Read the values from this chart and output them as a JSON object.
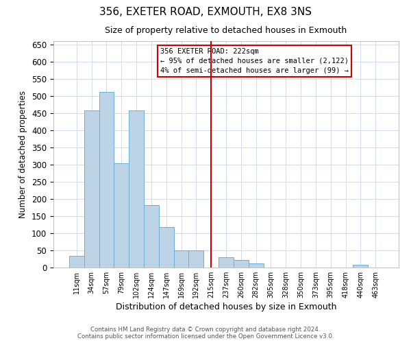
{
  "title": "356, EXETER ROAD, EXMOUTH, EX8 3NS",
  "subtitle": "Size of property relative to detached houses in Exmouth",
  "xlabel": "Distribution of detached houses by size in Exmouth",
  "ylabel": "Number of detached properties",
  "bin_labels": [
    "11sqm",
    "34sqm",
    "57sqm",
    "79sqm",
    "102sqm",
    "124sqm",
    "147sqm",
    "169sqm",
    "192sqm",
    "215sqm",
    "237sqm",
    "260sqm",
    "282sqm",
    "305sqm",
    "328sqm",
    "350sqm",
    "373sqm",
    "395sqm",
    "418sqm",
    "440sqm",
    "463sqm"
  ],
  "bar_values": [
    35,
    458,
    512,
    305,
    458,
    182,
    118,
    50,
    50,
    0,
    30,
    22,
    12,
    0,
    0,
    0,
    0,
    0,
    0,
    8,
    0
  ],
  "bar_color": "#bcd4e6",
  "bar_edge_color": "#6aaed6",
  "ylim": [
    0,
    660
  ],
  "yticks": [
    0,
    50,
    100,
    150,
    200,
    250,
    300,
    350,
    400,
    450,
    500,
    550,
    600,
    650
  ],
  "vline_x_label_idx": 9,
  "vline_color": "#cc0000",
  "annotation_box_text": "356 EXETER ROAD: 222sqm\n← 95% of detached houses are smaller (2,122)\n4% of semi-detached houses are larger (99) →",
  "annotation_edge_color": "#cc0000",
  "footer_line1": "Contains HM Land Registry data © Crown copyright and database right 2024.",
  "footer_line2": "Contains public sector information licensed under the Open Government Licence v3.0.",
  "background_color": "#ffffff",
  "grid_color": "#d0dce8",
  "figsize": [
    6.0,
    5.0
  ],
  "dpi": 100
}
